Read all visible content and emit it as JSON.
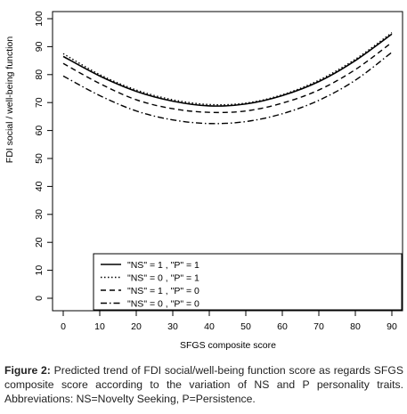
{
  "chart_data": {
    "type": "line",
    "xlabel": "SFGS composite score",
    "ylabel": "FDI social / well-being function",
    "xlim": [
      0,
      90
    ],
    "ylim": [
      0,
      100
    ],
    "x_ticks": [
      0,
      10,
      20,
      30,
      40,
      50,
      60,
      70,
      80,
      90
    ],
    "y_ticks": [
      0,
      10,
      20,
      30,
      40,
      50,
      60,
      70,
      80,
      90,
      100
    ],
    "grid": false,
    "legend_position": "bottom",
    "x": [
      0,
      10,
      20,
      30,
      40,
      50,
      60,
      70,
      80,
      90
    ],
    "series": [
      {
        "name": "\"NS\" = 1 , \"P\" = 1",
        "style": "solid",
        "values": [
          86.5,
          79.5,
          74.0,
          70.5,
          68.8,
          69.5,
          72.5,
          77.5,
          85.0,
          94.5
        ]
      },
      {
        "name": "\"NS\" = 0 , \"P\" = 1",
        "style": "dotted",
        "values": [
          87.5,
          80.0,
          74.5,
          71.0,
          69.3,
          69.8,
          72.8,
          78.0,
          85.5,
          95.0
        ]
      },
      {
        "name": "\"NS\" = 1 , \"P\" = 0",
        "style": "dashed",
        "values": [
          84.0,
          76.8,
          71.0,
          67.8,
          66.5,
          67.0,
          69.8,
          74.5,
          81.8,
          91.5
        ]
      },
      {
        "name": "\"NS\" = 0 , \"P\" = 0",
        "style": "dashdot",
        "values": [
          79.5,
          72.5,
          67.0,
          63.8,
          62.5,
          63.2,
          66.0,
          70.8,
          78.0,
          88.0
        ]
      }
    ]
  },
  "caption": {
    "label": "Figure 2:",
    "text": "Predicted trend of FDI social/well-being function score as regards SFGS composite score according to the variation of NS and P personality traits. Abbreviations: NS=Novelty Seeking, P=Persistence."
  }
}
